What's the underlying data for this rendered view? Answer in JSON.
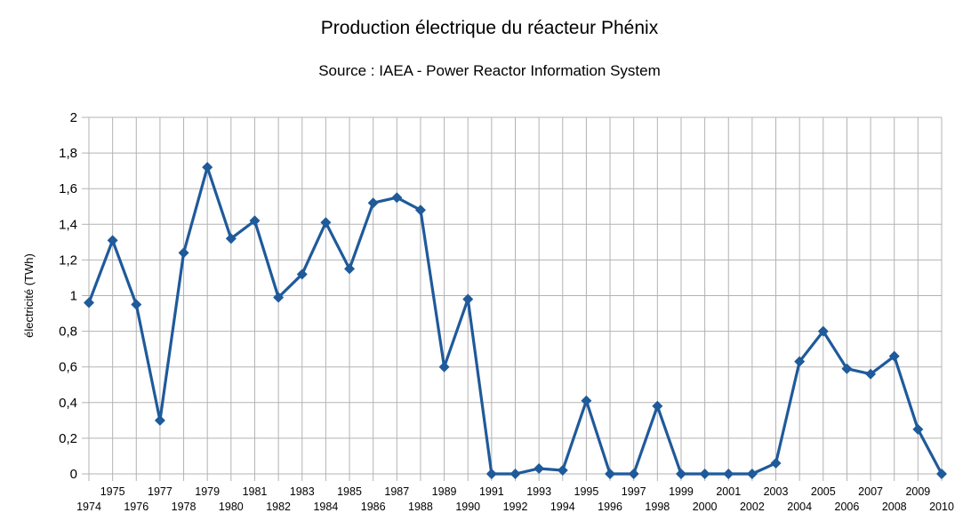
{
  "chart_data": {
    "type": "line",
    "title": "Production électrique du réacteur Phénix",
    "subtitle": "Source : IAEA - Power Reactor Information System",
    "xlabel": "",
    "ylabel": "électricité (TWh)",
    "ylim": [
      0,
      2
    ],
    "y_ticks": [
      "0",
      "0,2",
      "0,4",
      "0,6",
      "0,8",
      "1",
      "1,2",
      "1,4",
      "1,6",
      "1,8",
      "2"
    ],
    "grid": true,
    "legend": "none",
    "x": [
      "1974",
      "1975",
      "1976",
      "1977",
      "1978",
      "1979",
      "1980",
      "1981",
      "1982",
      "1983",
      "1984",
      "1985",
      "1986",
      "1987",
      "1988",
      "1989",
      "1990",
      "1991",
      "1992",
      "1993",
      "1994",
      "1995",
      "1996",
      "1997",
      "1998",
      "1999",
      "2000",
      "2001",
      "2002",
      "2003",
      "2004",
      "2005",
      "2006",
      "2007",
      "2008",
      "2009",
      "2010"
    ],
    "series": [
      {
        "values": [
          0.96,
          1.31,
          0.95,
          0.3,
          1.24,
          1.72,
          1.32,
          1.42,
          0.99,
          1.12,
          1.41,
          1.15,
          1.52,
          1.55,
          1.48,
          0.6,
          0.98,
          0.0,
          0.0,
          0.03,
          0.02,
          0.41,
          0.0,
          0.0,
          0.38,
          0.0,
          0.0,
          0.0,
          0.0,
          0.06,
          0.63,
          0.8,
          0.59,
          0.56,
          0.66,
          0.25,
          0.0
        ],
        "color": "#1f5a9a"
      }
    ]
  }
}
